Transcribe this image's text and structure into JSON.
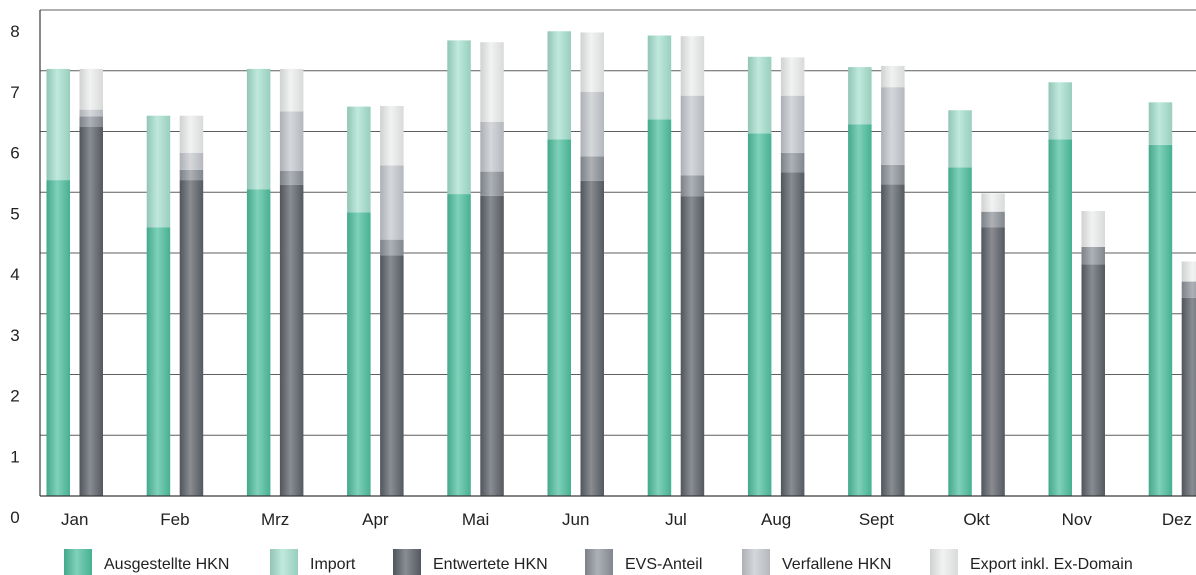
{
  "chart_data": {
    "type": "bar",
    "stacked": true,
    "categories": [
      "Jan",
      "Feb",
      "Mrz",
      "Apr",
      "Mai",
      "Jun",
      "Jul",
      "Aug",
      "Sept",
      "Okt",
      "Nov",
      "Dez"
    ],
    "ylim": [
      0,
      8
    ],
    "yticks": [
      "0",
      "1",
      "2",
      "3",
      "4",
      "5",
      "6",
      "7",
      "8"
    ],
    "grid": true,
    "legend_position": "bottom",
    "groups": [
      {
        "stack": "left",
        "series": [
          {
            "name": "Ausgestellte HKN",
            "color": "#4dbf9e",
            "values": [
              5.2,
              4.42,
              5.05,
              4.67,
              4.97,
              5.87,
              6.2,
              5.97,
              6.12,
              5.41,
              5.87,
              5.78
            ]
          },
          {
            "name": "Import",
            "color": "#a6e0cf",
            "values": [
              1.83,
              1.84,
              1.98,
              1.74,
              2.53,
              1.78,
              1.38,
              1.26,
              0.94,
              0.94,
              0.94,
              0.7
            ]
          }
        ]
      },
      {
        "stack": "right",
        "series": [
          {
            "name": "Entwertete HKN",
            "color": "#5b6168",
            "values": [
              6.08,
              5.2,
              5.12,
              3.96,
              4.94,
              5.19,
              4.93,
              5.33,
              5.13,
              4.42,
              3.81,
              3.26
            ]
          },
          {
            "name": "EVS-Anteil",
            "color": "#8d939a",
            "values": [
              0.17,
              0.17,
              0.23,
              0.26,
              0.4,
              0.4,
              0.35,
              0.32,
              0.32,
              0.26,
              0.29,
              0.27
            ]
          },
          {
            "name": "Verfallene HKN",
            "color": "#c4c8cd",
            "values": [
              0.11,
              0.28,
              0.98,
              1.22,
              0.82,
              1.06,
              1.31,
              0.94,
              1.28,
              0,
              0,
              0
            ]
          },
          {
            "name": "Export inkl. Ex-Domain",
            "color": "#eceded",
            "values": [
              0.67,
              0.61,
              0.7,
              0.98,
              1.31,
              0.98,
              0.98,
              0.63,
              0.35,
              0.3,
              0.59,
              0.33
            ]
          }
        ]
      }
    ]
  }
}
